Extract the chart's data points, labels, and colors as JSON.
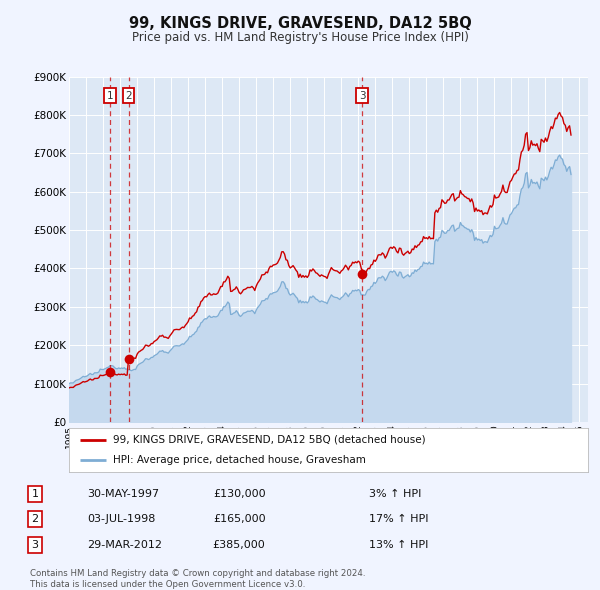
{
  "title": "99, KINGS DRIVE, GRAVESEND, DA12 5BQ",
  "subtitle": "Price paid vs. HM Land Registry's House Price Index (HPI)",
  "property_label": "99, KINGS DRIVE, GRAVESEND, DA12 5BQ (detached house)",
  "hpi_label": "HPI: Average price, detached house, Gravesham",
  "property_color": "#cc0000",
  "hpi_color": "#7eadd4",
  "hpi_fill_color": "#c5d9ee",
  "background_color": "#f0f4ff",
  "plot_bg_color": "#dde8f5",
  "grid_color": "#ffffff",
  "ylim": [
    0,
    900000
  ],
  "yticks": [
    0,
    100000,
    200000,
    300000,
    400000,
    500000,
    600000,
    700000,
    800000,
    900000
  ],
  "ytick_labels": [
    "£0",
    "£100K",
    "£200K",
    "£300K",
    "£400K",
    "£500K",
    "£600K",
    "£700K",
    "£800K",
    "£900K"
  ],
  "xmin": 1995.0,
  "xmax": 2025.5,
  "transactions": [
    {
      "label": "1",
      "date_str": "30-MAY-1997",
      "date_x": 1997.41,
      "price": 130000,
      "pct": "3%",
      "direction": "↑"
    },
    {
      "label": "2",
      "date_str": "03-JUL-1998",
      "date_x": 1998.5,
      "price": 165000,
      "pct": "17%",
      "direction": "↑"
    },
    {
      "label": "3",
      "date_str": "29-MAR-2012",
      "date_x": 2012.24,
      "price": 385000,
      "pct": "13%",
      "direction": "↑"
    }
  ],
  "footer_line1": "Contains HM Land Registry data © Crown copyright and database right 2024.",
  "footer_line2": "This data is licensed under the Open Government Licence v3.0.",
  "transaction_box_color": "#cc0000"
}
